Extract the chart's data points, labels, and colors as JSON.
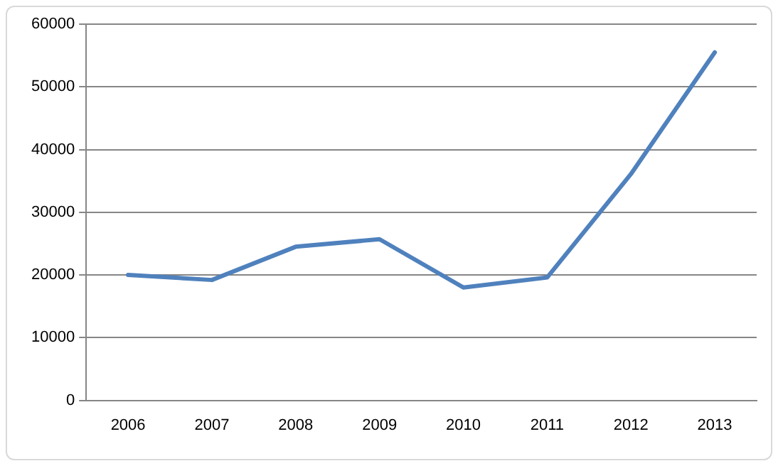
{
  "chart_data": {
    "type": "line",
    "categories": [
      "2006",
      "2007",
      "2008",
      "2009",
      "2010",
      "2011",
      "2012",
      "2013"
    ],
    "series": [
      {
        "color": "#4f81bd",
        "values": [
          20000,
          19200,
          24500,
          25700,
          18000,
          19600,
          36100,
          55500
        ]
      }
    ],
    "ylim": [
      0,
      60000
    ],
    "yticks": [
      0,
      10000,
      20000,
      30000,
      40000,
      50000,
      60000
    ],
    "grid": "y",
    "legend": false,
    "marker": "none",
    "line_style": "solid"
  }
}
